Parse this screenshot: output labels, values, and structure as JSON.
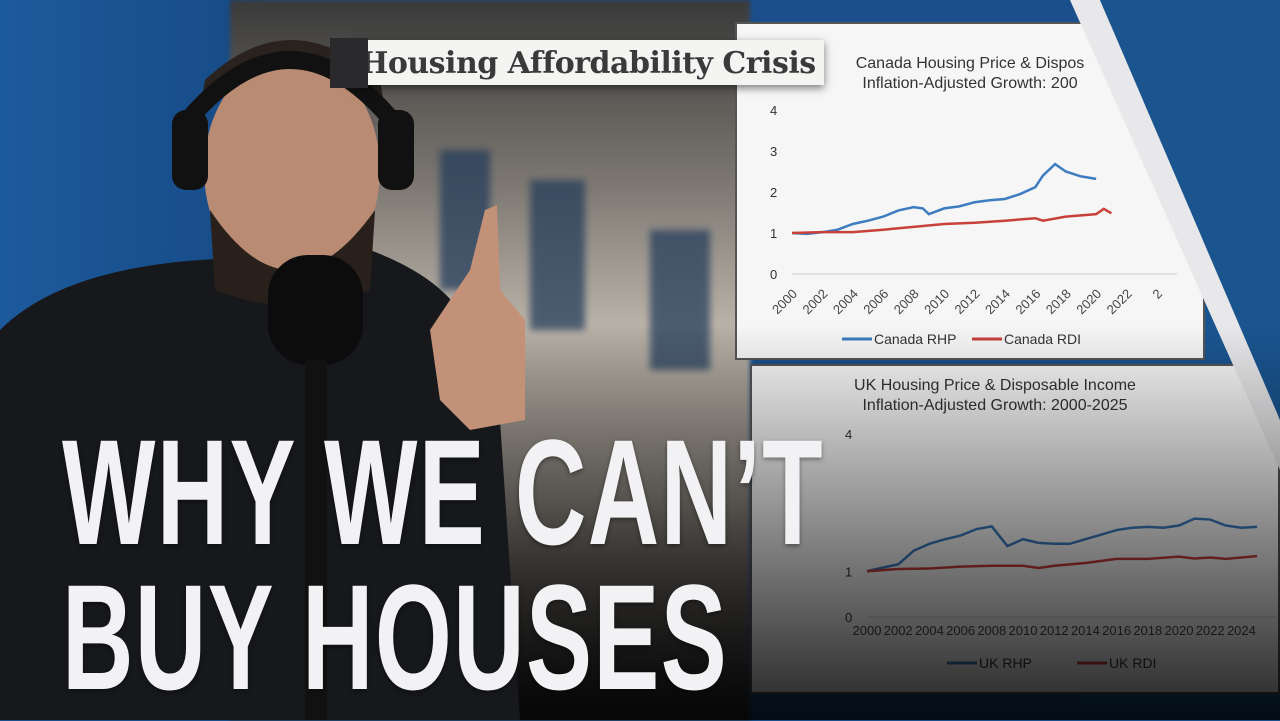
{
  "banner_label": "Housing Affordability Crisis",
  "headline": {
    "line1": "WHY WE CAN’T",
    "line2": "BUY HOUSES"
  },
  "colors": {
    "brand_blue": "#1a5590",
    "rhp_series": "#3d7cc0",
    "rdi_series": "#c8403a"
  },
  "chart_data": [
    {
      "type": "line",
      "title_line1": "Canada Housing Price & Dispos",
      "title_line2": "Inflation-Adjusted Growth: 200",
      "ylim": [
        0,
        4
      ],
      "yticks": [
        "0",
        "1",
        "2",
        "3",
        "4"
      ],
      "xticks": [
        "2000",
        "2002",
        "2004",
        "2006",
        "2008",
        "2010",
        "2012",
        "2014",
        "2016",
        "2018",
        "2020",
        "2022",
        "2"
      ],
      "xlim": [
        2000,
        2024
      ],
      "grid": false,
      "legend_placement": "bottom",
      "series": [
        {
          "name": "Canada RHP",
          "color": "#3d7cc0",
          "x": [
            2000,
            2001,
            2002,
            2003,
            2004,
            2005,
            2006,
            2007,
            2008,
            2008.6,
            2009,
            2010,
            2011,
            2012,
            2013,
            2014,
            2015,
            2016,
            2016.5,
            2017.3,
            2018,
            2019,
            2020
          ],
          "y": [
            1.0,
            0.98,
            1.02,
            1.08,
            1.22,
            1.3,
            1.4,
            1.55,
            1.63,
            1.6,
            1.46,
            1.6,
            1.65,
            1.75,
            1.8,
            1.83,
            1.95,
            2.12,
            2.4,
            2.68,
            2.5,
            2.38,
            2.32
          ]
        },
        {
          "name": "Canada RDI",
          "color": "#c8403a",
          "x": [
            2000,
            2002,
            2004,
            2006,
            2008,
            2010,
            2012,
            2014,
            2016,
            2016.5,
            2018,
            2020,
            2020.5,
            2021
          ],
          "y": [
            1.0,
            1.02,
            1.02,
            1.08,
            1.15,
            1.22,
            1.25,
            1.3,
            1.36,
            1.3,
            1.4,
            1.46,
            1.59,
            1.48
          ]
        }
      ]
    },
    {
      "type": "line",
      "title_line1": "UK Housing Price & Disposable Income",
      "title_line2": "Inflation-Adjusted Growth: 2000-2025",
      "ylim": [
        0,
        4
      ],
      "yticks": [
        "0",
        "1",
        "4"
      ],
      "xticks": [
        "2000",
        "2002",
        "2004",
        "2006",
        "2008",
        "2010",
        "2012",
        "2014",
        "2016",
        "2018",
        "2020",
        "2022",
        "2024"
      ],
      "xlim": [
        2000,
        2025
      ],
      "grid": false,
      "legend_placement": "bottom",
      "series": [
        {
          "name": "UK RHP",
          "color": "#3d7cc0",
          "x": [
            2000,
            2001,
            2002,
            2003,
            2004,
            2005,
            2006,
            2007,
            2008,
            2009,
            2010,
            2011,
            2012,
            2013,
            2014,
            2015,
            2016,
            2017,
            2018,
            2019,
            2020,
            2021,
            2022,
            2023,
            2024,
            2025
          ],
          "y": [
            1.0,
            1.08,
            1.15,
            1.45,
            1.6,
            1.7,
            1.78,
            1.92,
            1.98,
            1.55,
            1.7,
            1.62,
            1.6,
            1.6,
            1.7,
            1.8,
            1.9,
            1.95,
            1.97,
            1.95,
            2.0,
            2.15,
            2.13,
            2.0,
            1.95,
            1.97
          ]
        },
        {
          "name": "UK RDI",
          "color": "#c8403a",
          "x": [
            2000,
            2002,
            2004,
            2006,
            2008,
            2010,
            2011,
            2012,
            2014,
            2016,
            2018,
            2020,
            2021,
            2022,
            2023,
            2024,
            2025
          ],
          "y": [
            1.0,
            1.05,
            1.06,
            1.1,
            1.12,
            1.12,
            1.07,
            1.12,
            1.18,
            1.27,
            1.27,
            1.32,
            1.28,
            1.3,
            1.27,
            1.3,
            1.33
          ]
        }
      ]
    }
  ]
}
